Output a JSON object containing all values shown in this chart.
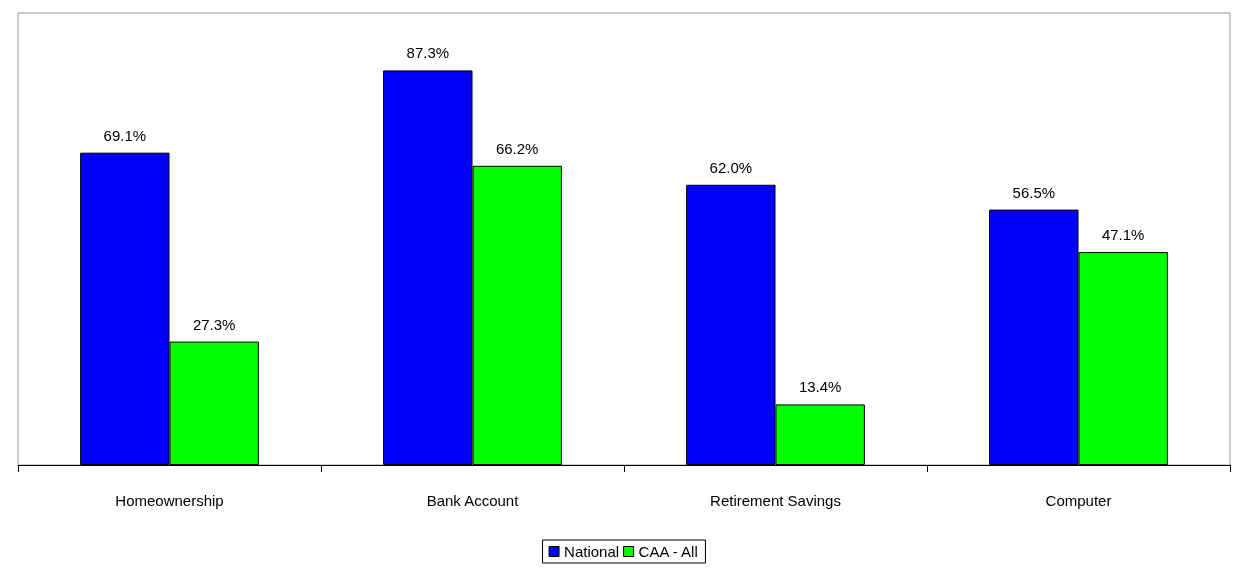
{
  "chart_data": {
    "type": "bar",
    "categories": [
      "Homeownership",
      "Bank Account",
      "Retirement Savings",
      "Computer"
    ],
    "series": [
      {
        "name": "National",
        "color": "#0000ff",
        "values": [
          69.1,
          87.3,
          62.0,
          56.5
        ],
        "value_labels": [
          "69.1%",
          "87.3%",
          "62.0%",
          "56.5%"
        ]
      },
      {
        "name": "CAA - All",
        "color": "#00ff00",
        "values": [
          27.3,
          66.2,
          13.4,
          47.1
        ],
        "value_labels": [
          "27.3%",
          "66.2%",
          "13.4%",
          "47.1%"
        ]
      }
    ],
    "legend": "bottom",
    "grid": false
  }
}
